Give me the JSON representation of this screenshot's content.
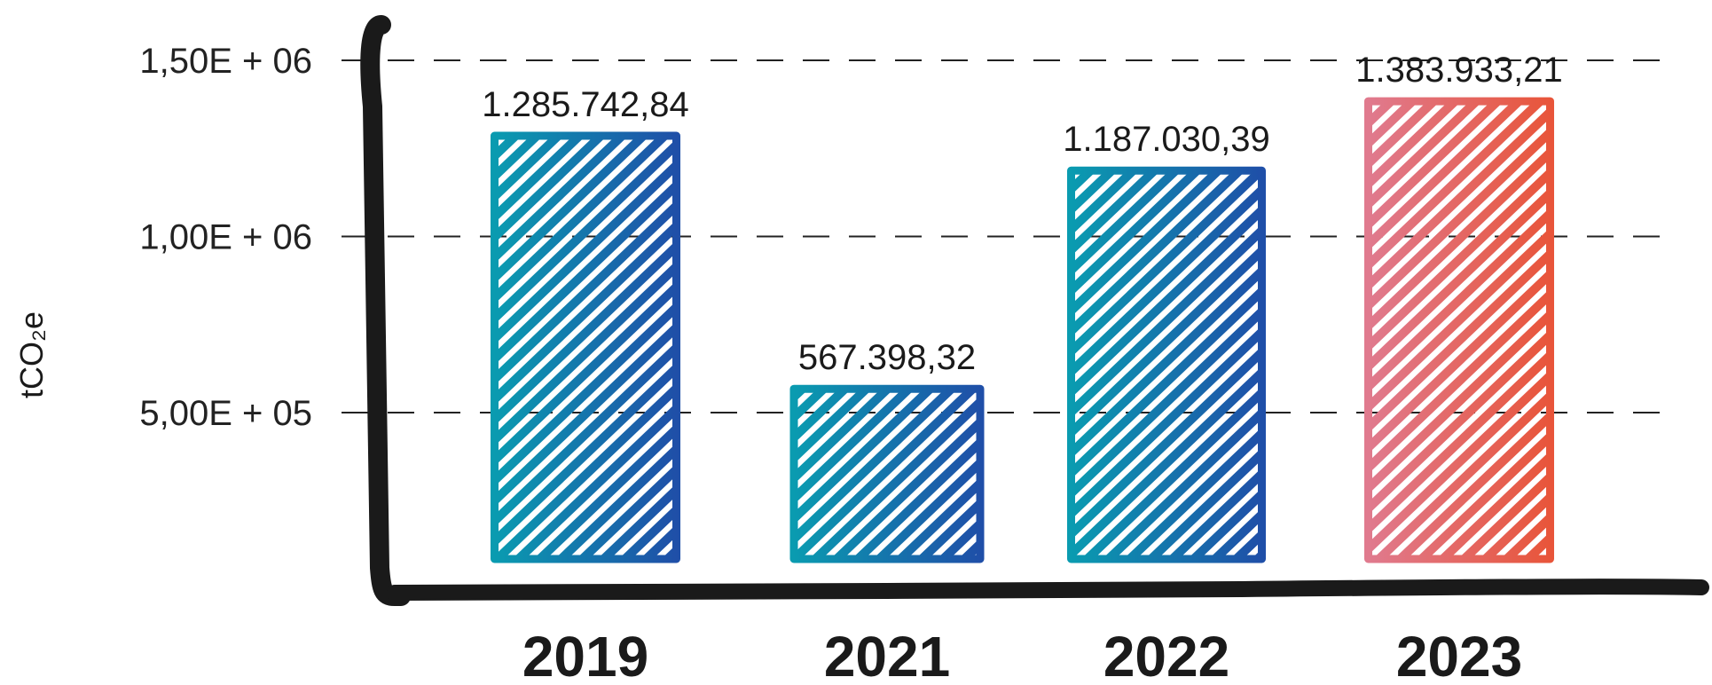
{
  "chart_data": {
    "type": "bar",
    "ylabel": "tCO₂e",
    "categories": [
      "2019",
      "2021",
      "2022",
      "2023"
    ],
    "values": [
      1285742.84,
      567398.32,
      1187030.39,
      1383933.21
    ],
    "value_labels": [
      "1.285.742,84",
      "567.398,32",
      "1.187.030,39",
      "1.383.933,21"
    ],
    "yticks": [
      500000,
      1000000,
      1500000
    ],
    "ytick_labels": [
      "5,00E + 05",
      "1,00E + 06",
      "1,50E + 06"
    ],
    "ylim": [
      0,
      1500000
    ],
    "grid": "dashed horizontal",
    "bar_styles": [
      {
        "hatch": "diagonal",
        "color_from": "#0a9bb0",
        "color_to": "#1f4fa8"
      },
      {
        "hatch": "diagonal",
        "color_from": "#0a9bb0",
        "color_to": "#1f4fa8"
      },
      {
        "hatch": "diagonal",
        "color_from": "#0a9bb0",
        "color_to": "#1f4fa8"
      },
      {
        "hatch": "diagonal",
        "color_from": "#e07a8e",
        "color_to": "#e8553a"
      }
    ],
    "axis_color": "#1a1a1a"
  }
}
